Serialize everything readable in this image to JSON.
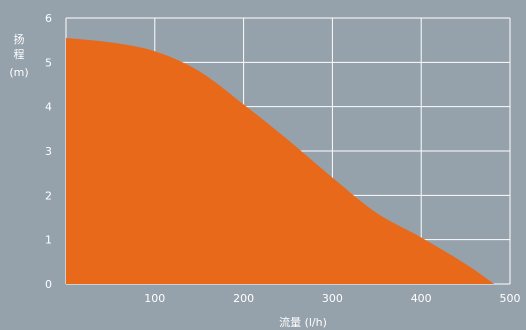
{
  "chart_data": {
    "type": "area",
    "x": [
      0,
      50,
      100,
      150,
      200,
      250,
      300,
      350,
      400,
      450,
      482
    ],
    "y": [
      5.55,
      5.45,
      5.25,
      4.8,
      4.05,
      3.25,
      2.4,
      1.6,
      1.05,
      0.45,
      0
    ],
    "xlabel": "流量 (l/h)",
    "ylabel_line1": "扬",
    "ylabel_line2": "程",
    "ylabel_unit": "(m)",
    "xlim": [
      0,
      500
    ],
    "ylim": [
      0,
      6
    ],
    "x_ticks": [
      100,
      200,
      300,
      400,
      500
    ],
    "y_ticks": [
      0,
      1,
      2,
      3,
      4,
      5,
      6
    ],
    "grid": true,
    "fill_color": "#e8691a",
    "background_color": "#95a1ab",
    "grid_color": "#ffffff"
  }
}
